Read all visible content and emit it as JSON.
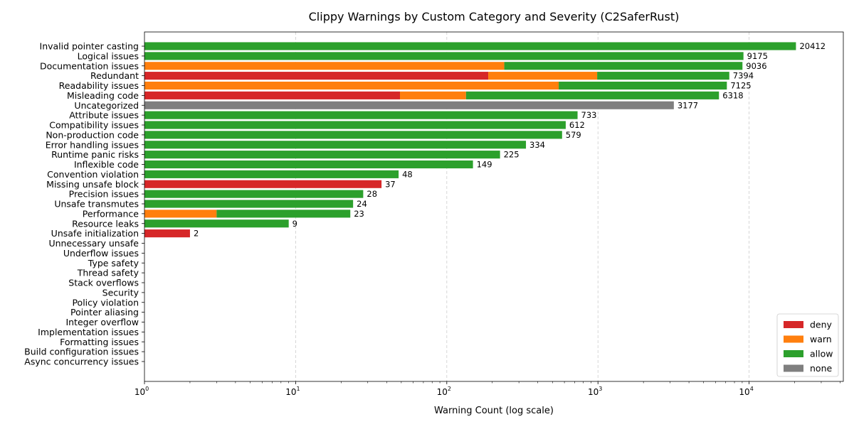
{
  "chart_data": {
    "type": "bar",
    "orientation": "horizontal",
    "stacked": true,
    "title": "Clippy Warnings by Custom Category and Severity (C2SaferRust)",
    "xlabel": "Warning Count (log scale)",
    "ylabel": "",
    "xscale": "log",
    "xlim": [
      1,
      42000
    ],
    "x_ticks": [
      {
        "value": 1,
        "base": "10",
        "exp": "0"
      },
      {
        "value": 10,
        "base": "10",
        "exp": "1"
      },
      {
        "value": 100,
        "base": "10",
        "exp": "2"
      },
      {
        "value": 1000,
        "base": "10",
        "exp": "3"
      },
      {
        "value": 10000,
        "base": "10",
        "exp": "4"
      }
    ],
    "grid": "x-dashed",
    "legend_position": "bottom-right",
    "categories": [
      "Invalid pointer casting",
      "Logical issues",
      "Documentation issues",
      "Redundant",
      "Readability issues",
      "Misleading code",
      "Uncategorized",
      "Attribute issues",
      "Compatibility issues",
      "Non-production code",
      "Error handling issues",
      "Runtime panic risks",
      "Inflexible code",
      "Convention violation",
      "Missing unsafe block",
      "Precision issues",
      "Unsafe transmutes",
      "Performance",
      "Resource leaks",
      "Unsafe initialization",
      "Unnecessary unsafe",
      "Underflow issues",
      "Type safety",
      "Thread safety",
      "Stack overflows",
      "Security",
      "Policy violation",
      "Pointer aliasing",
      "Integer overflow",
      "Implementation issues",
      "Formatting issues",
      "Build configuration issues",
      "Async concurrency issues"
    ],
    "series": [
      {
        "name": "deny",
        "color": "#d62728",
        "values": [
          0,
          0,
          0,
          188,
          0,
          49,
          0,
          0,
          0,
          0,
          0,
          0,
          0,
          0,
          37,
          0,
          0,
          0,
          0,
          2,
          0,
          0,
          0,
          0,
          0,
          0,
          0,
          0,
          0,
          0,
          0,
          0,
          0
        ]
      },
      {
        "name": "warn",
        "color": "#ff7f0e",
        "values": [
          0,
          0,
          240,
          800,
          550,
          85,
          0,
          0,
          0,
          0,
          0,
          0,
          0,
          0,
          0,
          0,
          0,
          3,
          0,
          0,
          0,
          0,
          0,
          0,
          0,
          0,
          0,
          0,
          0,
          0,
          0,
          0,
          0
        ]
      },
      {
        "name": "allow",
        "color": "#2ca02c",
        "values": [
          20412,
          9175,
          8796,
          6406,
          6575,
          6184,
          0,
          733,
          612,
          579,
          334,
          225,
          149,
          48,
          0,
          28,
          24,
          20,
          9,
          0,
          0,
          0,
          0,
          0,
          0,
          0,
          0,
          0,
          0,
          0,
          0,
          0,
          0
        ]
      },
      {
        "name": "none",
        "color": "#7f7f7f",
        "values": [
          0,
          0,
          0,
          0,
          0,
          0,
          3177,
          0,
          0,
          0,
          0,
          0,
          0,
          0,
          0,
          0,
          0,
          0,
          0,
          0,
          0,
          0,
          0,
          0,
          0,
          0,
          0,
          0,
          0,
          0,
          0,
          0,
          0
        ]
      }
    ],
    "totals": [
      20412,
      9175,
      9036,
      7394,
      7125,
      6318,
      3177,
      733,
      612,
      579,
      334,
      225,
      149,
      48,
      37,
      28,
      24,
      23,
      9,
      2,
      0,
      0,
      0,
      0,
      0,
      0,
      0,
      0,
      0,
      0,
      0,
      0,
      0
    ]
  }
}
